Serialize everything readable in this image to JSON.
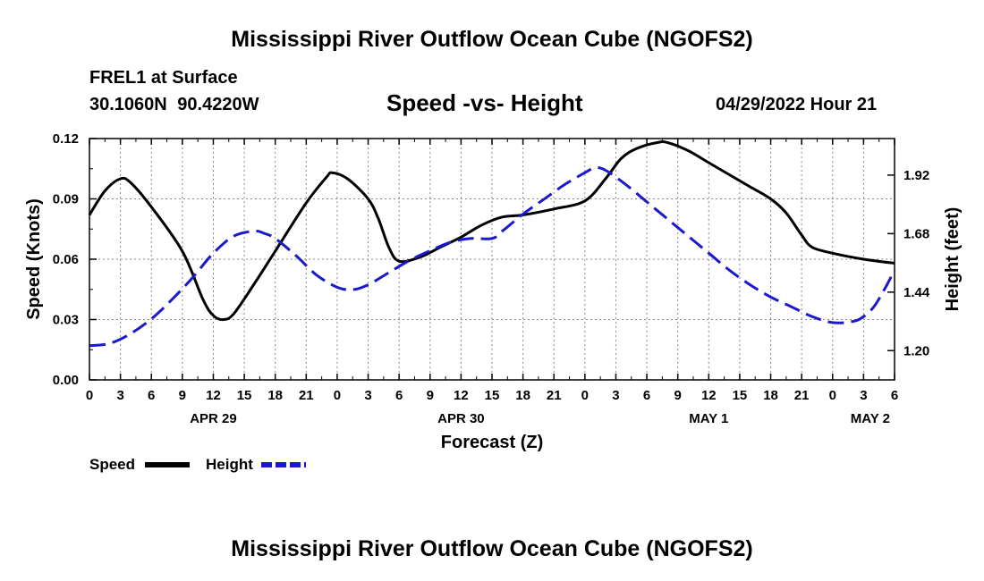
{
  "header": {
    "title": "Mississippi River Outflow Ocean Cube (NGOFS2)",
    "station": "FREL1 at Surface",
    "coordinates": "30.1060N 90.4220W",
    "subtitle": "Speed -vs- Height",
    "timestamp": "04/29/2022 Hour 21"
  },
  "footer": {
    "title": "Mississippi River Outflow Ocean Cube (NGOFS2)"
  },
  "chart_data": {
    "type": "line",
    "title": "Speed -vs- Height",
    "xlabel": "Forecast (Z)",
    "ylabel": "Speed (Knots)",
    "y2label": "Height (feet)",
    "x_range_hours": [
      0,
      78
    ],
    "xticks": [
      {
        "h": 0,
        "label": "0"
      },
      {
        "h": 3,
        "label": "3"
      },
      {
        "h": 6,
        "label": "6"
      },
      {
        "h": 9,
        "label": "9"
      },
      {
        "h": 12,
        "label": "12"
      },
      {
        "h": 15,
        "label": "15"
      },
      {
        "h": 18,
        "label": "18"
      },
      {
        "h": 21,
        "label": "21"
      },
      {
        "h": 24,
        "label": "0"
      },
      {
        "h": 27,
        "label": "3"
      },
      {
        "h": 30,
        "label": "6"
      },
      {
        "h": 33,
        "label": "9"
      },
      {
        "h": 36,
        "label": "12"
      },
      {
        "h": 39,
        "label": "15"
      },
      {
        "h": 42,
        "label": "18"
      },
      {
        "h": 45,
        "label": "21"
      },
      {
        "h": 48,
        "label": "0"
      },
      {
        "h": 51,
        "label": "3"
      },
      {
        "h": 54,
        "label": "6"
      },
      {
        "h": 57,
        "label": "9"
      },
      {
        "h": 60,
        "label": "12"
      },
      {
        "h": 63,
        "label": "15"
      },
      {
        "h": 66,
        "label": "18"
      },
      {
        "h": 69,
        "label": "21"
      },
      {
        "h": 72,
        "label": "0"
      },
      {
        "h": 75,
        "label": "3"
      },
      {
        "h": 78,
        "label": "6"
      }
    ],
    "date_labels": [
      {
        "h": 12,
        "label": "APR 29"
      },
      {
        "h": 36,
        "label": "APR 30"
      },
      {
        "h": 60,
        "label": "MAY 1"
      },
      {
        "h": 78,
        "label": "MAY 2"
      }
    ],
    "y_left": {
      "min": 0,
      "max": 0.12,
      "ticks": [
        "0.00",
        "0.03",
        "0.06",
        "0.09",
        "0.12"
      ]
    },
    "y_right": {
      "min": 1.08,
      "max": 2.07,
      "ticks": [
        "1.20",
        "1.44",
        "1.68",
        "1.92"
      ]
    },
    "grid": true,
    "legend_position": "bottom-left",
    "series": [
      {
        "name": "Speed",
        "axis": "left",
        "color": "#000000",
        "dash": "solid",
        "points": [
          [
            0,
            0.082
          ],
          [
            1.5,
            0.094
          ],
          [
            3,
            0.1
          ],
          [
            4,
            0.098
          ],
          [
            6,
            0.086
          ],
          [
            9,
            0.064
          ],
          [
            11,
            0.04
          ],
          [
            12,
            0.032
          ],
          [
            13,
            0.03
          ],
          [
            14,
            0.033
          ],
          [
            16,
            0.048
          ],
          [
            18,
            0.064
          ],
          [
            21,
            0.088
          ],
          [
            23,
            0.101
          ],
          [
            23.5,
            0.103
          ],
          [
            25,
            0.1
          ],
          [
            27,
            0.09
          ],
          [
            28,
            0.08
          ],
          [
            29,
            0.066
          ],
          [
            30,
            0.059
          ],
          [
            32,
            0.061
          ],
          [
            34,
            0.066
          ],
          [
            36,
            0.071
          ],
          [
            38,
            0.077
          ],
          [
            40,
            0.081
          ],
          [
            42,
            0.082
          ],
          [
            45,
            0.085
          ],
          [
            48,
            0.089
          ],
          [
            50,
            0.1
          ],
          [
            51.5,
            0.11
          ],
          [
            53,
            0.115
          ],
          [
            55,
            0.118
          ],
          [
            56,
            0.118
          ],
          [
            58,
            0.114
          ],
          [
            60,
            0.108
          ],
          [
            62,
            0.102
          ],
          [
            64,
            0.096
          ],
          [
            66,
            0.09
          ],
          [
            67.5,
            0.083
          ],
          [
            69,
            0.072
          ],
          [
            70,
            0.066
          ],
          [
            72,
            0.063
          ],
          [
            75,
            0.06
          ],
          [
            78,
            0.058
          ]
        ]
      },
      {
        "name": "Height",
        "axis": "right",
        "color": "#1a1acc",
        "dash": "dashed",
        "points": [
          [
            0,
            1.22
          ],
          [
            2,
            1.23
          ],
          [
            4,
            1.27
          ],
          [
            6,
            1.33
          ],
          [
            8,
            1.41
          ],
          [
            10,
            1.5
          ],
          [
            12,
            1.6
          ],
          [
            14,
            1.67
          ],
          [
            16,
            1.69
          ],
          [
            17,
            1.68
          ],
          [
            18,
            1.66
          ],
          [
            20,
            1.59
          ],
          [
            22,
            1.51
          ],
          [
            24,
            1.46
          ],
          [
            25.5,
            1.45
          ],
          [
            27,
            1.47
          ],
          [
            29,
            1.52
          ],
          [
            31,
            1.57
          ],
          [
            33,
            1.61
          ],
          [
            35,
            1.645
          ],
          [
            37,
            1.66
          ],
          [
            39,
            1.66
          ],
          [
            40,
            1.69
          ],
          [
            42,
            1.76
          ],
          [
            44,
            1.82
          ],
          [
            46,
            1.88
          ],
          [
            48,
            1.93
          ],
          [
            49,
            1.95
          ],
          [
            50,
            1.94
          ],
          [
            52,
            1.88
          ],
          [
            54,
            1.81
          ],
          [
            56,
            1.74
          ],
          [
            58,
            1.67
          ],
          [
            60,
            1.6
          ],
          [
            62,
            1.53
          ],
          [
            64,
            1.47
          ],
          [
            66,
            1.42
          ],
          [
            68,
            1.38
          ],
          [
            70,
            1.34
          ],
          [
            72,
            1.315
          ],
          [
            74,
            1.32
          ],
          [
            75,
            1.34
          ],
          [
            76,
            1.38
          ],
          [
            77,
            1.45
          ],
          [
            78,
            1.53
          ]
        ]
      }
    ]
  }
}
